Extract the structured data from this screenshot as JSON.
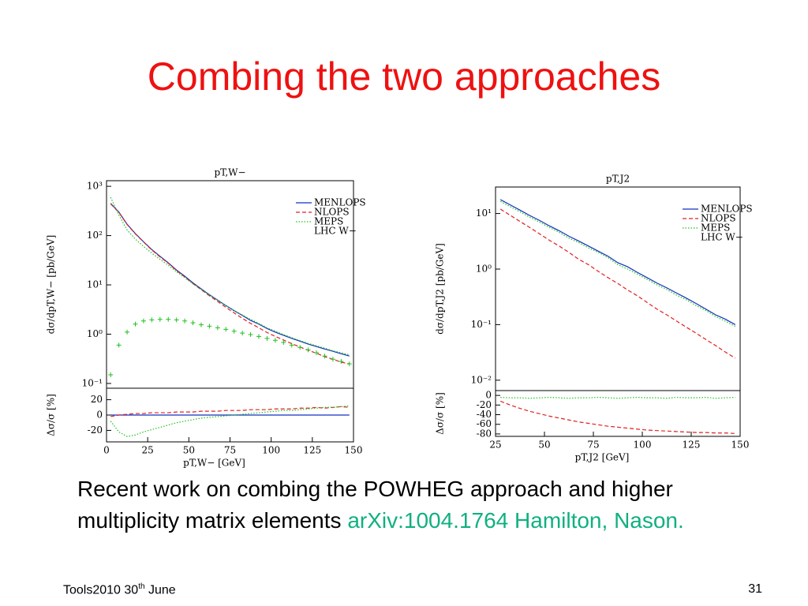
{
  "title": "Combing the two approaches",
  "body": {
    "text": "Recent work on combing the POWHEG approach and higher multiplicity matrix elements",
    "link": "arXiv:1004.1764 Hamilton, Nason."
  },
  "footer": {
    "left": "Tools2010 30",
    "left_sup": "th",
    "left_end": " June",
    "page": "31"
  },
  "chart_data": [
    {
      "type": "line",
      "title": "pT,W−",
      "ylabel": "dσ/dpT,W− [pb/GeV]",
      "log_y": true,
      "legend_note": "LHC W−",
      "xlim": [
        0,
        150
      ],
      "ylim": [
        0.08,
        1300
      ],
      "yticks": [
        {
          "value": 0.1,
          "label": "10⁻¹"
        },
        {
          "value": 1,
          "label": "10⁰"
        },
        {
          "value": 10,
          "label": "10¹"
        },
        {
          "value": 100,
          "label": "10²"
        },
        {
          "value": 1000,
          "label": "10³"
        }
      ],
      "x": [
        2.5,
        7.5,
        12.5,
        17.5,
        22.5,
        27.5,
        32.5,
        37.5,
        42.5,
        47.5,
        52.5,
        57.5,
        62.5,
        67.5,
        72.5,
        77.5,
        82.5,
        87.5,
        92.5,
        97.5,
        102.5,
        107.5,
        112.5,
        117.5,
        122.5,
        127.5,
        132.5,
        137.5,
        142.5,
        147.5
      ],
      "series": [
        {
          "name": "MENLOPS",
          "color": "#1030c0",
          "style": "solid",
          "values": [
            450,
            300,
            170,
            110,
            75,
            52,
            38,
            28,
            20,
            15,
            11,
            8.3,
            6.3,
            4.9,
            3.8,
            3.0,
            2.4,
            1.9,
            1.6,
            1.3,
            1.1,
            0.95,
            0.82,
            0.72,
            0.63,
            0.56,
            0.5,
            0.45,
            0.4,
            0.36
          ]
        },
        {
          "name": "NLOPS",
          "color": "#e02020",
          "style": "dashed",
          "values": [
            440,
            295,
            168,
            108,
            74,
            51,
            37,
            27.5,
            19.5,
            14.5,
            10.6,
            8.0,
            6.0,
            4.6,
            3.5,
            2.7,
            2.1,
            1.65,
            1.35,
            1.08,
            0.9,
            0.76,
            0.64,
            0.55,
            0.47,
            0.41,
            0.35,
            0.31,
            0.27,
            0.25
          ]
        },
        {
          "name": "MEPS",
          "color": "#20c020",
          "style": "dotted",
          "values": [
            600,
            260,
            130,
            85,
            60,
            44,
            33,
            25,
            18.5,
            14,
            10.5,
            8.0,
            6.2,
            4.9,
            3.8,
            3.0,
            2.45,
            2.0,
            1.65,
            1.35,
            1.15,
            0.98,
            0.85,
            0.74,
            0.65,
            0.58,
            0.52,
            0.46,
            0.42,
            0.38
          ]
        },
        {
          "color": "#20c020",
          "style": "cross",
          "values": [
            0.15,
            0.6,
            1.1,
            1.6,
            1.85,
            1.95,
            2.0,
            2.0,
            1.95,
            1.85,
            1.7,
            1.55,
            1.45,
            1.35,
            1.25,
            1.15,
            1.05,
            0.98,
            0.9,
            0.82,
            0.75,
            0.68,
            0.6,
            0.54,
            0.48,
            0.42,
            0.36,
            0.31,
            0.28,
            0.25
          ]
        }
      ]
    },
    {
      "type": "line",
      "ylabel": "Δσ/σ [%]",
      "xlabel": "pT,W− [GeV]",
      "xlim": [
        0,
        150
      ],
      "xticks": [
        0,
        25,
        50,
        75,
        100,
        125,
        150
      ],
      "ylim": [
        -35,
        35
      ],
      "yticks": [
        -20,
        0,
        20
      ],
      "x": [
        2.5,
        7.5,
        12.5,
        17.5,
        22.5,
        27.5,
        32.5,
        37.5,
        42.5,
        47.5,
        52.5,
        57.5,
        62.5,
        67.5,
        72.5,
        77.5,
        82.5,
        87.5,
        92.5,
        97.5,
        102.5,
        107.5,
        112.5,
        117.5,
        122.5,
        127.5,
        132.5,
        137.5,
        142.5,
        147.5
      ],
      "series": [
        {
          "name": "MENLOPS",
          "color": "#1030c0",
          "style": "solid",
          "values": [
            0,
            0,
            0,
            0,
            0,
            0,
            0,
            0,
            0,
            0,
            0,
            0,
            0,
            0,
            0,
            0,
            0,
            0,
            0,
            0,
            0,
            0,
            0,
            0,
            0,
            0,
            0,
            0,
            0,
            0
          ]
        },
        {
          "name": "NLOPS",
          "color": "#e02020",
          "style": "dashed",
          "values": [
            -2,
            0,
            1,
            2,
            2,
            3,
            3,
            3,
            4,
            4,
            4,
            5,
            5,
            5,
            6,
            6,
            6,
            7,
            7,
            7,
            8,
            8,
            8,
            9,
            9,
            10,
            9,
            10,
            11,
            10
          ]
        },
        {
          "name": "MEPS",
          "color": "#20c020",
          "style": "dotted",
          "values": [
            -8,
            -22,
            -28,
            -26,
            -22,
            -19,
            -16,
            -13,
            -10,
            -8,
            -6,
            -4,
            -3,
            -2,
            -1,
            0,
            1,
            2,
            3,
            4,
            5,
            6,
            6,
            7,
            8,
            9,
            10,
            10,
            11,
            12
          ]
        }
      ]
    },
    {
      "type": "line",
      "title": "pT,J2",
      "ylabel": "dσ/dpT,J2 [pb/GeV]",
      "log_y": true,
      "legend_note": "LHC W−",
      "xlim": [
        25,
        150
      ],
      "ylim": [
        0.0065,
        30
      ],
      "yticks": [
        {
          "value": 0.01,
          "label": "10⁻²"
        },
        {
          "value": 0.1,
          "label": "10⁻¹"
        },
        {
          "value": 1,
          "label": "10⁰"
        },
        {
          "value": 10,
          "label": "10¹"
        }
      ],
      "x": [
        27.5,
        32.5,
        37.5,
        42.5,
        47.5,
        52.5,
        57.5,
        62.5,
        67.5,
        72.5,
        77.5,
        82.5,
        87.5,
        92.5,
        97.5,
        102.5,
        107.5,
        112.5,
        117.5,
        122.5,
        127.5,
        132.5,
        137.5,
        142.5,
        147.5
      ],
      "series": [
        {
          "name": "MENLOPS",
          "color": "#1030c0",
          "style": "solid",
          "values": [
            17.8,
            14.3,
            11.5,
            9.2,
            7.5,
            6.0,
            4.9,
            3.9,
            3.2,
            2.6,
            2.1,
            1.7,
            1.3,
            1.1,
            0.87,
            0.7,
            0.56,
            0.46,
            0.37,
            0.3,
            0.24,
            0.19,
            0.15,
            0.125,
            0.1
          ]
        },
        {
          "name": "NLOPS",
          "color": "#e02020",
          "style": "dashed",
          "values": [
            12.0,
            9.3,
            7.2,
            5.6,
            4.3,
            3.3,
            2.6,
            2.0,
            1.5,
            1.2,
            0.91,
            0.7,
            0.55,
            0.42,
            0.33,
            0.25,
            0.19,
            0.15,
            0.116,
            0.09,
            0.07,
            0.054,
            0.042,
            0.032,
            0.025
          ]
        },
        {
          "name": "MEPS",
          "color": "#20c020",
          "style": "dotted",
          "values": [
            16.5,
            13.3,
            10.7,
            8.6,
            7.0,
            5.6,
            4.6,
            3.6,
            3.0,
            2.4,
            2.0,
            1.6,
            1.2,
            1.0,
            0.81,
            0.65,
            0.52,
            0.43,
            0.34,
            0.28,
            0.22,
            0.18,
            0.14,
            0.115,
            0.093
          ]
        }
      ]
    },
    {
      "type": "line",
      "ylabel": "Δσ/σ [%]",
      "xlabel": "pT,J2 [GeV]",
      "xlim": [
        25,
        150
      ],
      "xticks": [
        25,
        50,
        75,
        100,
        125,
        150
      ],
      "ylim": [
        -85,
        10
      ],
      "yticks": [
        -80,
        -60,
        -40,
        -20,
        0
      ],
      "x": [
        27.5,
        32.5,
        37.5,
        42.5,
        47.5,
        52.5,
        57.5,
        62.5,
        67.5,
        72.5,
        77.5,
        82.5,
        87.5,
        92.5,
        97.5,
        102.5,
        107.5,
        112.5,
        117.5,
        122.5,
        127.5,
        132.5,
        137.5,
        142.5,
        147.5
      ],
      "series": [
        {
          "name": "NLOPS",
          "color": "#e02020",
          "style": "dashed",
          "values": [
            -12,
            -20,
            -27,
            -33,
            -38,
            -43,
            -47,
            -51,
            -55,
            -58,
            -61,
            -64,
            -66,
            -68,
            -70,
            -72,
            -73,
            -74,
            -75,
            -76,
            -77,
            -77,
            -78,
            -78,
            -79
          ]
        },
        {
          "name": "MEPS",
          "color": "#20c020",
          "style": "dotted",
          "values": [
            -4,
            -5,
            -5,
            -6,
            -5,
            -4,
            -5,
            -6,
            -5,
            -5,
            -4,
            -5,
            -6,
            -5,
            -4,
            -5,
            -5,
            -6,
            -4,
            -5,
            -5,
            -4,
            -6,
            -5,
            -4
          ]
        }
      ]
    }
  ]
}
